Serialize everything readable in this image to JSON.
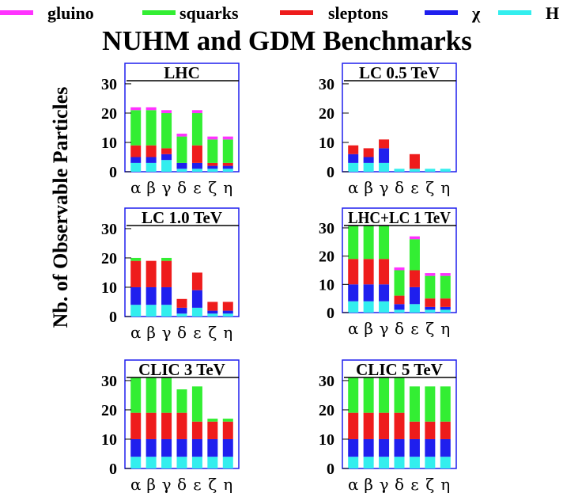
{
  "title": "NUHM and GDM Benchmarks",
  "ylabel": "Nb. of Observable Particles",
  "legend": [
    {
      "name": "gluino",
      "color": "#ff33ff"
    },
    {
      "name": "squarks",
      "color": "#33ee33"
    },
    {
      "name": "sleptons",
      "color": "#ee1c1c"
    },
    {
      "name": "χ",
      "color": "#1f1fee"
    },
    {
      "name": "H",
      "color": "#33eeee"
    }
  ],
  "chart_data": [
    {
      "type": "bar",
      "stacked": true,
      "title": "LHC",
      "categories": [
        "α",
        "β",
        "γ",
        "δ",
        "ε",
        "ζ",
        "η"
      ],
      "yticks": [
        0,
        10,
        20,
        30
      ],
      "ylim": [
        0,
        37
      ],
      "series": [
        {
          "name": "H",
          "values": [
            3,
            3,
            4,
            1,
            1,
            1,
            1
          ]
        },
        {
          "name": "χ",
          "values": [
            2,
            2,
            2,
            2,
            2,
            1,
            1
          ]
        },
        {
          "name": "sleptons",
          "values": [
            4,
            4,
            2,
            0,
            6,
            1,
            1
          ]
        },
        {
          "name": "squarks",
          "values": [
            12,
            12,
            12,
            9,
            11,
            8,
            8
          ]
        },
        {
          "name": "gluino",
          "values": [
            1,
            1,
            1,
            1,
            1,
            1,
            1
          ]
        }
      ]
    },
    {
      "type": "bar",
      "stacked": true,
      "title": "LC 0.5 TeV",
      "categories": [
        "α",
        "β",
        "γ",
        "δ",
        "ε",
        "ζ",
        "η"
      ],
      "yticks": [
        0,
        10,
        20,
        30
      ],
      "ylim": [
        0,
        37
      ],
      "series": [
        {
          "name": "H",
          "values": [
            3,
            3,
            3,
            1,
            1,
            1,
            1
          ]
        },
        {
          "name": "χ",
          "values": [
            3,
            2,
            5,
            0,
            0,
            0,
            0
          ]
        },
        {
          "name": "sleptons",
          "values": [
            3,
            3,
            3,
            0,
            5,
            0,
            0
          ]
        },
        {
          "name": "squarks",
          "values": [
            0,
            0,
            0,
            0,
            0,
            0,
            0
          ]
        },
        {
          "name": "gluino",
          "values": [
            0,
            0,
            0,
            0,
            0,
            0,
            0
          ]
        }
      ]
    },
    {
      "type": "bar",
      "stacked": true,
      "title": "LC 1.0 TeV",
      "categories": [
        "α",
        "β",
        "γ",
        "δ",
        "ε",
        "ζ",
        "η"
      ],
      "yticks": [
        0,
        10,
        20,
        30
      ],
      "ylim": [
        0,
        37
      ],
      "series": [
        {
          "name": "H",
          "values": [
            4,
            4,
            4,
            1,
            3,
            1,
            1
          ]
        },
        {
          "name": "χ",
          "values": [
            6,
            6,
            6,
            2,
            6,
            1,
            1
          ]
        },
        {
          "name": "sleptons",
          "values": [
            9,
            9,
            9,
            3,
            6,
            3,
            3
          ]
        },
        {
          "name": "squarks",
          "values": [
            1,
            0,
            1,
            0,
            0,
            0,
            0
          ]
        },
        {
          "name": "gluino",
          "values": [
            0,
            0,
            0,
            0,
            0,
            0,
            0
          ]
        }
      ]
    },
    {
      "type": "bar",
      "stacked": true,
      "title": "LHC+LC 1 TeV",
      "categories": [
        "α",
        "β",
        "γ",
        "δ",
        "ε",
        "ζ",
        "η"
      ],
      "yticks": [
        0,
        10,
        20,
        30
      ],
      "ylim": [
        0,
        37
      ],
      "series": [
        {
          "name": "H",
          "values": [
            4,
            4,
            4,
            1,
            3,
            1,
            1
          ]
        },
        {
          "name": "χ",
          "values": [
            6,
            6,
            6,
            2,
            6,
            1,
            1
          ]
        },
        {
          "name": "sleptons",
          "values": [
            9,
            9,
            9,
            3,
            6,
            3,
            3
          ]
        },
        {
          "name": "squarks",
          "values": [
            12,
            12,
            12,
            9,
            11,
            8,
            8
          ]
        },
        {
          "name": "gluino",
          "values": [
            1,
            1,
            1,
            1,
            1,
            1,
            1
          ]
        }
      ]
    },
    {
      "type": "bar",
      "stacked": true,
      "title": "CLIC 3 TeV",
      "categories": [
        "α",
        "β",
        "γ",
        "δ",
        "ε",
        "ζ",
        "η"
      ],
      "yticks": [
        0,
        10,
        20,
        30
      ],
      "ylim": [
        0,
        37
      ],
      "series": [
        {
          "name": "H",
          "values": [
            4,
            4,
            4,
            4,
            4,
            4,
            4
          ]
        },
        {
          "name": "χ",
          "values": [
            6,
            6,
            6,
            6,
            6,
            6,
            6
          ]
        },
        {
          "name": "sleptons",
          "values": [
            9,
            9,
            9,
            9,
            6,
            6,
            6
          ]
        },
        {
          "name": "squarks",
          "values": [
            12,
            12,
            12,
            8,
            12,
            1,
            1
          ]
        },
        {
          "name": "gluino",
          "values": [
            0,
            0,
            1,
            0,
            0,
            0,
            0
          ]
        }
      ]
    },
    {
      "type": "bar",
      "stacked": true,
      "title": "CLIC 5 TeV",
      "categories": [
        "α",
        "β",
        "γ",
        "δ",
        "ε",
        "ζ",
        "η"
      ],
      "yticks": [
        0,
        10,
        20,
        30
      ],
      "ylim": [
        0,
        37
      ],
      "series": [
        {
          "name": "H",
          "values": [
            4,
            4,
            4,
            4,
            4,
            4,
            4
          ]
        },
        {
          "name": "χ",
          "values": [
            6,
            6,
            6,
            6,
            6,
            6,
            6
          ]
        },
        {
          "name": "sleptons",
          "values": [
            9,
            9,
            9,
            9,
            6,
            6,
            6
          ]
        },
        {
          "name": "squarks",
          "values": [
            12,
            12,
            12,
            12,
            12,
            12,
            12
          ]
        },
        {
          "name": "gluino",
          "values": [
            0,
            0,
            1,
            0,
            0,
            0,
            0
          ]
        }
      ]
    }
  ]
}
